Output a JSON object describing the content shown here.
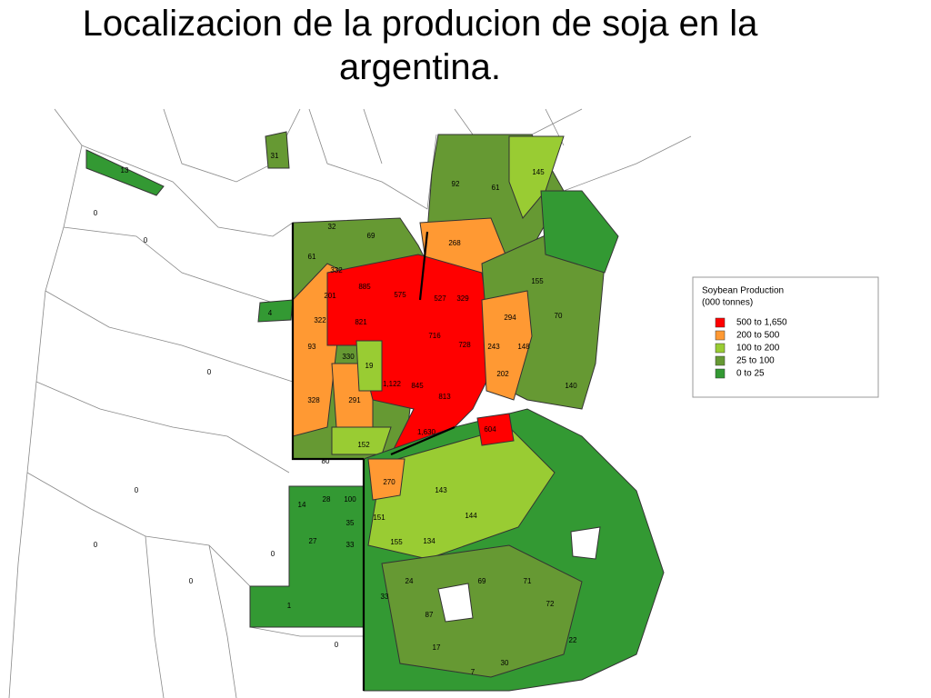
{
  "title": "Localizacion de la producion de soja en la argentina.",
  "legend": {
    "title": "Soybean Production",
    "subtitle": "(000 tonnes)",
    "items": [
      {
        "range": "500 to 1,650",
        "color": "#ff0000"
      },
      {
        "range": "200 to 500",
        "color": "#ff9933"
      },
      {
        "range": "100 to 200",
        "color": "#99cc33"
      },
      {
        "range": "25 to 100",
        "color": "#669933"
      },
      {
        "range": "0 to 25",
        "color": "#339933"
      }
    ]
  },
  "map": {
    "labels": [
      "13",
      "31",
      "32",
      "69",
      "61",
      "332",
      "201",
      "322",
      "93",
      "328",
      "291",
      "152",
      "80",
      "885",
      "575",
      "527",
      "329",
      "821",
      "716",
      "728",
      "330",
      "19",
      "1,122",
      "845",
      "813",
      "1,630",
      "604",
      "268",
      "92",
      "61",
      "145",
      "294",
      "243",
      "148",
      "202",
      "155",
      "70",
      "140",
      "270",
      "151",
      "143",
      "144",
      "155",
      "134",
      "4",
      "14",
      "28",
      "100",
      "35",
      "27",
      "33",
      "1",
      "69",
      "71",
      "72",
      "87",
      "22",
      "30",
      "7",
      "17",
      "24",
      "33",
      "0",
      "0",
      "0",
      "0",
      "0",
      "0",
      "0",
      "0"
    ]
  }
}
